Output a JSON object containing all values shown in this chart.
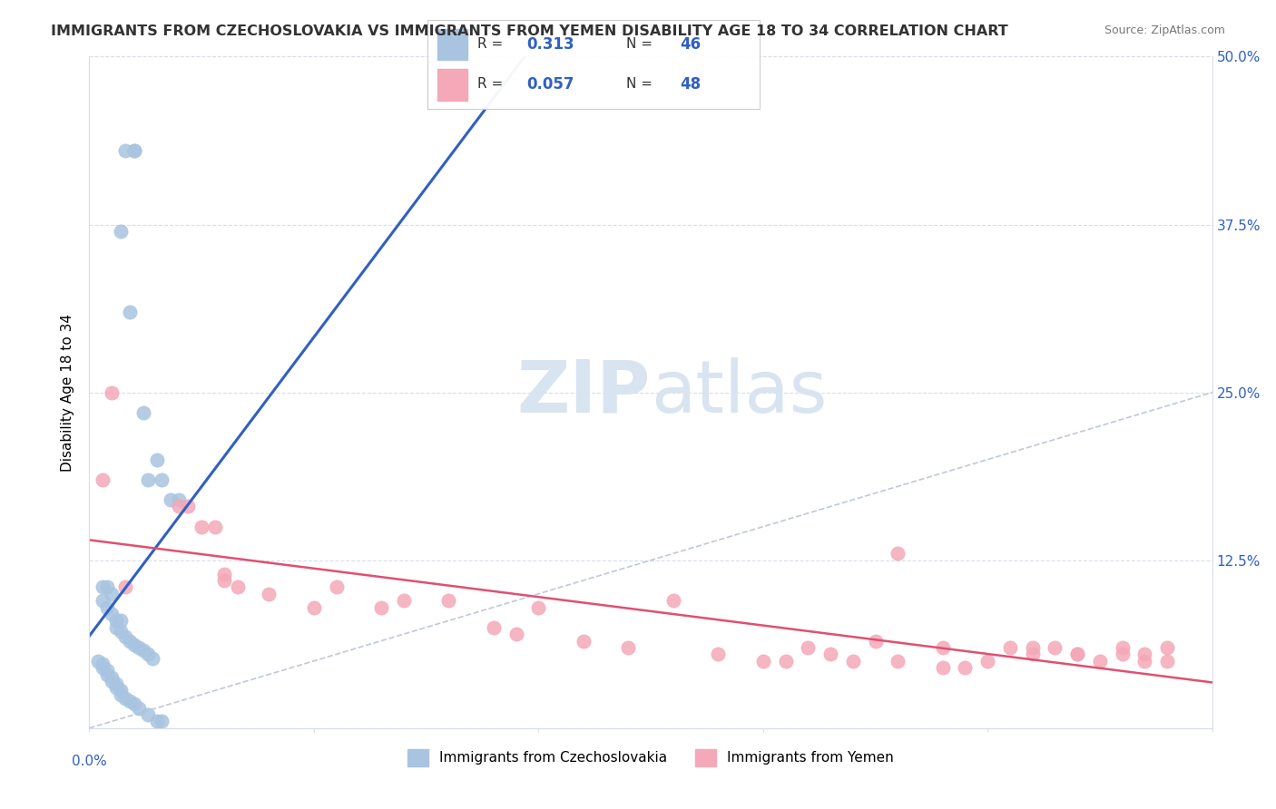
{
  "title": "IMMIGRANTS FROM CZECHOSLOVAKIA VS IMMIGRANTS FROM YEMEN DISABILITY AGE 18 TO 34 CORRELATION CHART",
  "source": "Source: ZipAtlas.com",
  "ylabel": "Disability Age 18 to 34",
  "legend_blue_R": "0.313",
  "legend_blue_N": "46",
  "legend_pink_R": "0.057",
  "legend_pink_N": "48",
  "blue_scatter_x": [
    0.008,
    0.01,
    0.01,
    0.007,
    0.009,
    0.012,
    0.015,
    0.013,
    0.016,
    0.018,
    0.02,
    0.003,
    0.004,
    0.005,
    0.003,
    0.004,
    0.005,
    0.006,
    0.007,
    0.006,
    0.007,
    0.008,
    0.009,
    0.01,
    0.011,
    0.012,
    0.013,
    0.014,
    0.002,
    0.003,
    0.003,
    0.004,
    0.004,
    0.005,
    0.005,
    0.006,
    0.006,
    0.007,
    0.007,
    0.008,
    0.009,
    0.01,
    0.011,
    0.013,
    0.015,
    0.016
  ],
  "blue_scatter_y": [
    0.43,
    0.43,
    0.43,
    0.37,
    0.31,
    0.235,
    0.2,
    0.185,
    0.185,
    0.17,
    0.17,
    0.105,
    0.105,
    0.1,
    0.095,
    0.09,
    0.085,
    0.08,
    0.08,
    0.075,
    0.072,
    0.068,
    0.065,
    0.062,
    0.06,
    0.058,
    0.055,
    0.052,
    0.05,
    0.048,
    0.045,
    0.043,
    0.04,
    0.038,
    0.035,
    0.033,
    0.03,
    0.028,
    0.025,
    0.022,
    0.02,
    0.018,
    0.015,
    0.01,
    0.005,
    0.005
  ],
  "pink_scatter_x": [
    0.003,
    0.005,
    0.008,
    0.02,
    0.022,
    0.025,
    0.028,
    0.03,
    0.03,
    0.033,
    0.04,
    0.05,
    0.055,
    0.065,
    0.07,
    0.08,
    0.09,
    0.095,
    0.1,
    0.11,
    0.12,
    0.13,
    0.14,
    0.15,
    0.155,
    0.16,
    0.165,
    0.17,
    0.175,
    0.18,
    0.19,
    0.195,
    0.2,
    0.205,
    0.21,
    0.215,
    0.22,
    0.225,
    0.23,
    0.235,
    0.24,
    0.18,
    0.19,
    0.21,
    0.22,
    0.23,
    0.235,
    0.24
  ],
  "pink_scatter_y": [
    0.185,
    0.25,
    0.105,
    0.165,
    0.165,
    0.15,
    0.15,
    0.115,
    0.11,
    0.105,
    0.1,
    0.09,
    0.105,
    0.09,
    0.095,
    0.095,
    0.075,
    0.07,
    0.09,
    0.065,
    0.06,
    0.095,
    0.055,
    0.05,
    0.05,
    0.06,
    0.055,
    0.05,
    0.065,
    0.05,
    0.045,
    0.045,
    0.05,
    0.06,
    0.055,
    0.06,
    0.055,
    0.05,
    0.06,
    0.055,
    0.06,
    0.13,
    0.06,
    0.06,
    0.055,
    0.055,
    0.05,
    0.05
  ],
  "blue_color": "#a8c4e0",
  "pink_color": "#f4a8b8",
  "blue_line_color": "#3060c0",
  "pink_line_color": "#e05070",
  "diag_line_color": "#c0c8d8",
  "background_color": "#ffffff",
  "grid_color": "#d8dde8",
  "watermark_color": "#d8e4f0",
  "xlim": [
    0.0,
    0.25
  ],
  "ylim": [
    0.0,
    0.5
  ],
  "yticks": [
    0.0,
    0.125,
    0.25,
    0.375,
    0.5
  ],
  "ytick_labels": [
    "",
    "12.5%",
    "25.0%",
    "37.5%",
    "50.0%"
  ],
  "label_color": "#3060c0",
  "legend_bottom_labels": [
    "Immigrants from Czechoslovakia",
    "Immigrants from Yemen"
  ]
}
